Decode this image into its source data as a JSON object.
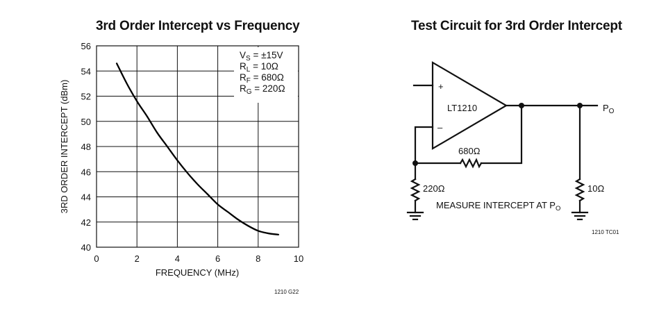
{
  "chart_data": {
    "type": "line",
    "title": "3rd Order Intercept vs Frequency",
    "xlabel": "FREQUENCY (MHz)",
    "ylabel": "3RD ORDER INTERCEPT (dBm)",
    "xlim": [
      0,
      10
    ],
    "ylim": [
      40,
      56
    ],
    "x_ticks": [
      0,
      2,
      4,
      6,
      8,
      10
    ],
    "y_ticks": [
      40,
      42,
      44,
      46,
      48,
      50,
      52,
      54,
      56
    ],
    "grid": true,
    "series": [
      {
        "x": [
          1,
          1.5,
          2,
          2.5,
          3,
          3.5,
          4,
          4.5,
          5,
          5.5,
          6,
          6.5,
          7,
          7.5,
          8,
          8.5,
          9
        ],
        "values": [
          54.6,
          53.0,
          51.6,
          50.4,
          49.1,
          48.0,
          46.9,
          45.9,
          45.0,
          44.2,
          43.4,
          42.8,
          42.2,
          41.7,
          41.3,
          41.1,
          41.0
        ]
      }
    ],
    "conditions": [
      {
        "main": "V",
        "sub": "S",
        "rest": " = ±15V"
      },
      {
        "main": "R",
        "sub": "L",
        "rest": " = 10Ω"
      },
      {
        "main": "R",
        "sub": "F",
        "rest": " = 680Ω"
      },
      {
        "main": "R",
        "sub": "G",
        "rest": " = 220Ω"
      }
    ],
    "figure_id": "1210 G22"
  },
  "circuit": {
    "title": "Test Circuit for 3rd Order Intercept",
    "opamp_label": "LT1210",
    "plus_label": "+",
    "minus_label": "–",
    "rf_label": "680Ω",
    "rg_label": "220Ω",
    "rl_label": "10Ω",
    "output_label": {
      "main": "P",
      "sub": "O"
    },
    "measure_label": {
      "main": "MEASURE INTERCEPT AT P",
      "sub": "O"
    },
    "figure_id": "1210 TC01"
  }
}
